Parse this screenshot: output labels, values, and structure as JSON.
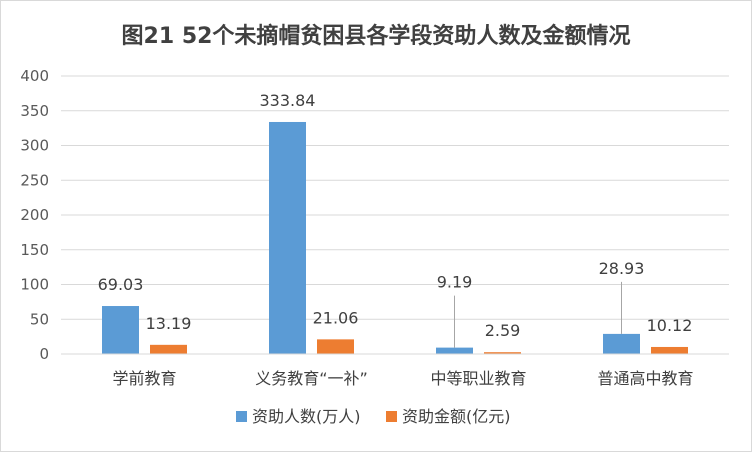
{
  "chart_data": {
    "type": "bar",
    "title": "图21  52个未摘帽贫困县各学段资助人数及金额情况",
    "categories": [
      "学前教育",
      "义务教育“一补”",
      "中等职业教育",
      "普通高中教育"
    ],
    "series": [
      {
        "name": "资助人数(万人)",
        "values": [
          69.03,
          333.84,
          9.19,
          28.93
        ],
        "labels": [
          "69.03",
          "333.84",
          "9.19",
          "28.93"
        ],
        "color": "#5B9BD5"
      },
      {
        "name": "资助金额(亿元)",
        "values": [
          13.19,
          21.06,
          2.59,
          10.12
        ],
        "labels": [
          "13.19",
          "21.06",
          "2.59",
          "10.12"
        ],
        "color": "#ED7D31"
      }
    ],
    "ylim": [
      0,
      400
    ],
    "yticks": [
      0,
      50,
      100,
      150,
      200,
      250,
      300,
      350,
      400
    ],
    "grid": true,
    "legend_position": "bottom"
  }
}
